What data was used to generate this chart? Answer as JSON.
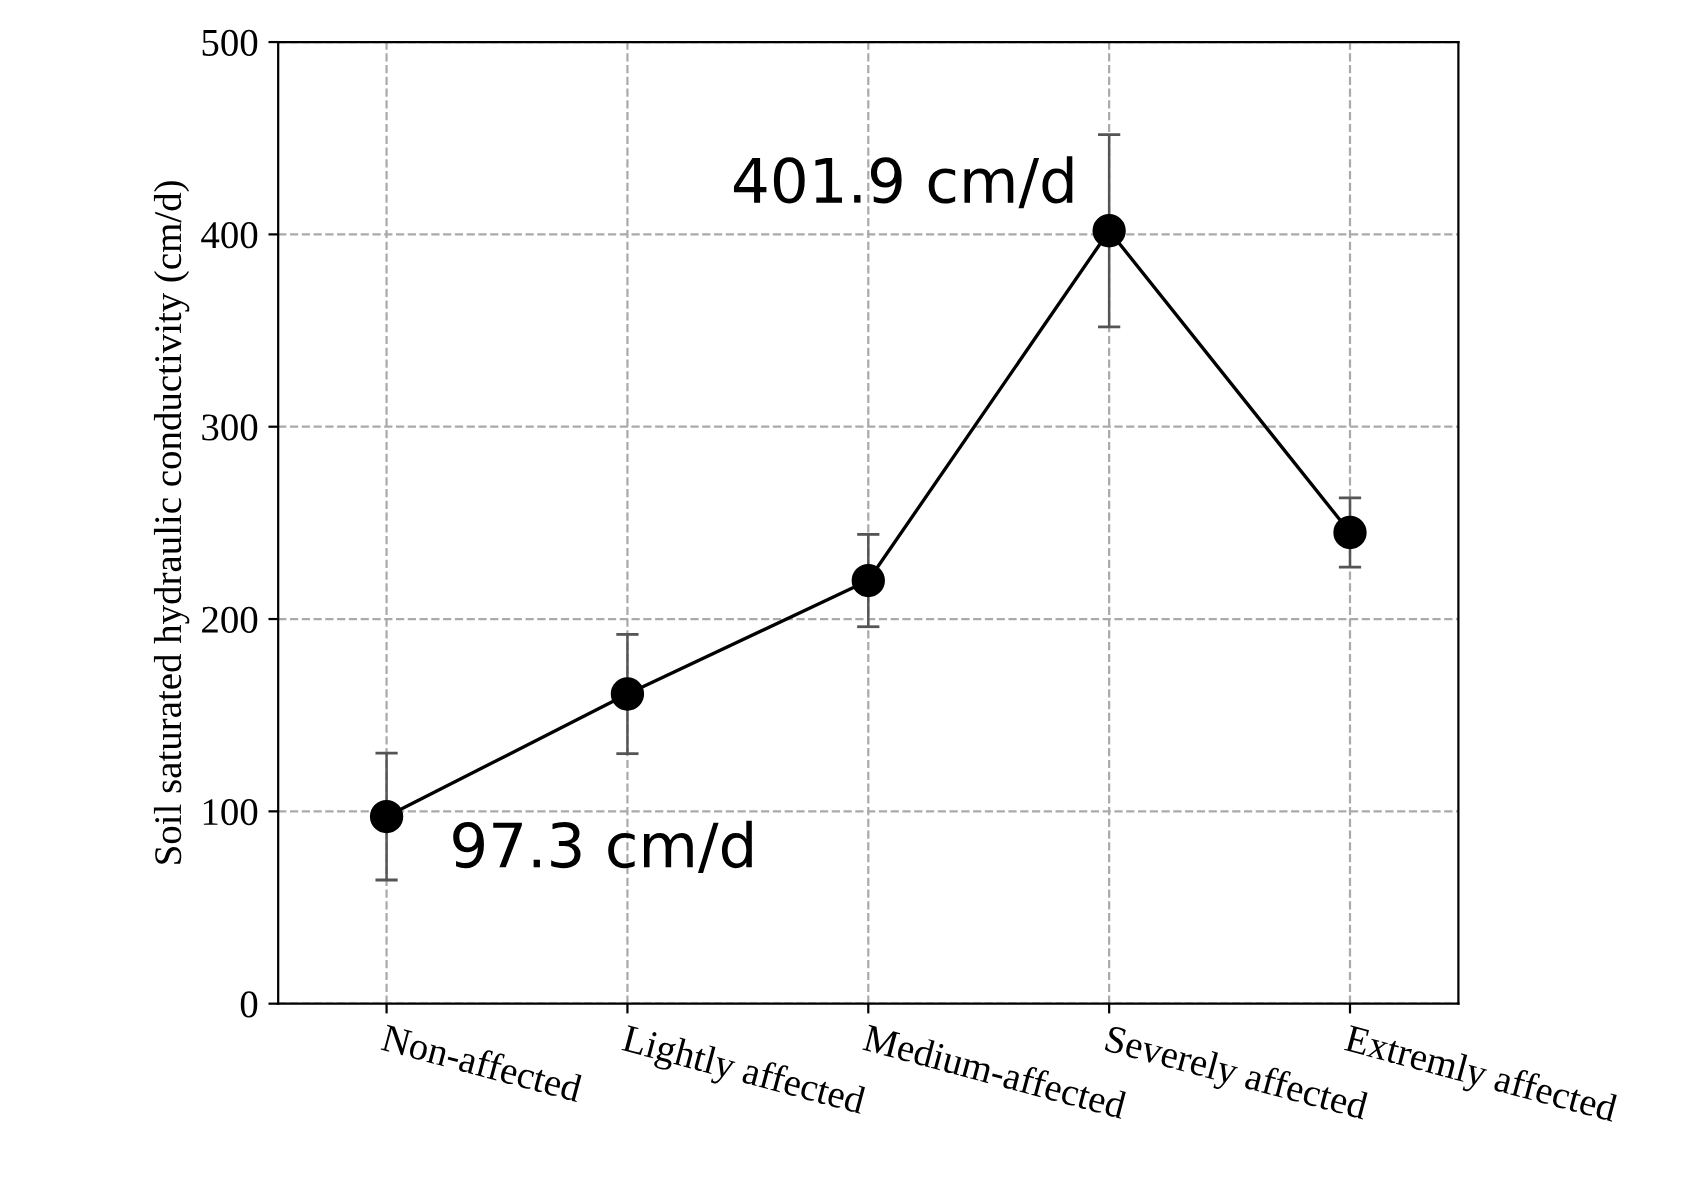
{
  "chart_data": {
    "type": "line",
    "ylabel": "Soil saturated hydraulic conductivity (cm/d)",
    "categories": [
      "Non-affected",
      "Lightly affected",
      "Medium-affected",
      "Severely affected",
      "Extremly affected"
    ],
    "series": [
      {
        "color": "#000000",
        "values": [
          97.3,
          161,
          220,
          401.9,
          245
        ],
        "errors": [
          33,
          31,
          24,
          50,
          18
        ]
      }
    ],
    "ylim": [
      0,
      500
    ],
    "yticks": [
      0,
      100,
      200,
      300,
      400,
      500
    ],
    "grid": true,
    "marker": "circle",
    "line_style": "solid",
    "annotations": [
      {
        "text": "401.9 cm/d",
        "x": "Severely affected",
        "y": 401.9
      },
      {
        "text": "97.3 cm/d",
        "x": "Non-affected",
        "y": 97.3
      }
    ]
  }
}
